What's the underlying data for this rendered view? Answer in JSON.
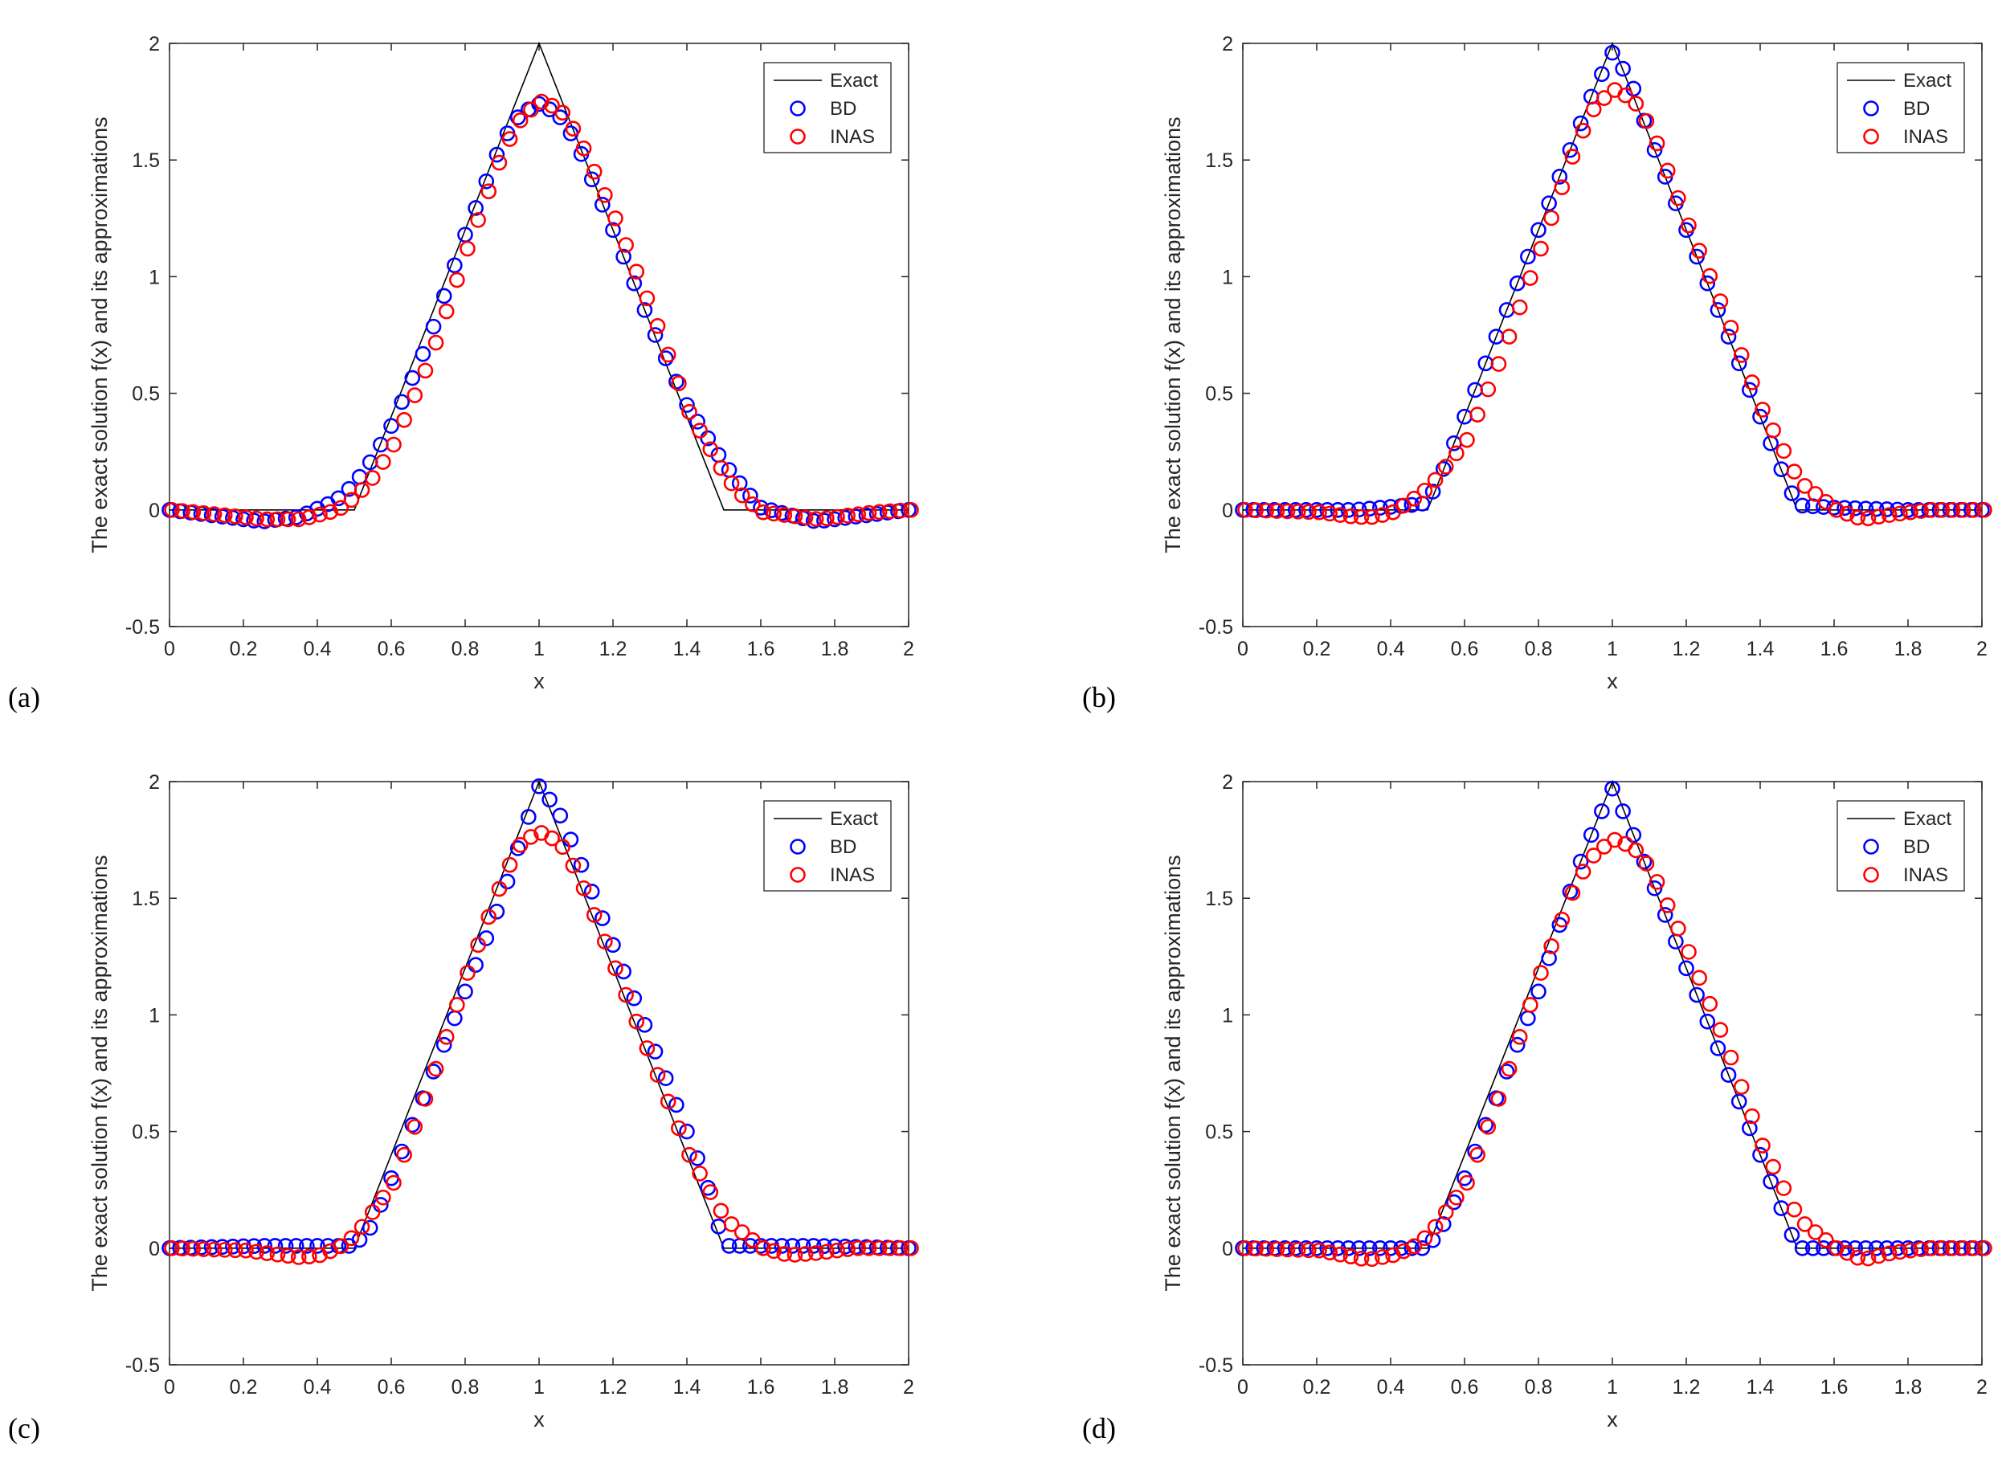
{
  "figure": {
    "panels": [
      "(a)",
      "(b)",
      "(c)",
      "(d)"
    ]
  },
  "colors": {
    "exact": "#000000",
    "bd": "#0000ff",
    "inas": "#ff0000",
    "axes": "#262626",
    "legend_border": "#262626"
  },
  "chart_data": [
    {
      "type": "line+scatter",
      "panel_label": "(a)",
      "xlabel": "x",
      "ylabel": "The exact solution f(x) and its approximations",
      "xlim": [
        0,
        2
      ],
      "ylim": [
        -0.5,
        2
      ],
      "xticks": [
        "0",
        "0.2",
        "0.4",
        "0.6",
        "0.8",
        "1",
        "1.2",
        "1.4",
        "1.6",
        "1.8",
        "2"
      ],
      "yticks": [
        "-0.5",
        "0",
        "0.5",
        "1",
        "1.5",
        "2"
      ],
      "grid": false,
      "legend_position": "top-right",
      "legend": [
        "Exact",
        "BD",
        "INAS"
      ],
      "series": [
        {
          "name": "Exact",
          "style": "line",
          "x": [
            0,
            0.5,
            1,
            1.5,
            2
          ],
          "y": [
            0,
            0,
            2,
            0,
            0
          ]
        },
        {
          "name": "BD",
          "style": "circle",
          "x": [
            0,
            0.25,
            0.35,
            0.45,
            0.5,
            0.55,
            0.6,
            0.7,
            0.8,
            0.9,
            0.95,
            1,
            1.05,
            1.1,
            1.2,
            1.3,
            1.4,
            1.5,
            1.55,
            1.6,
            1.75,
            1.9,
            2
          ],
          "y": [
            0,
            -0.05,
            -0.03,
            0.04,
            0.11,
            0.22,
            0.36,
            0.72,
            1.18,
            1.58,
            1.7,
            1.74,
            1.7,
            1.58,
            1.2,
            0.8,
            0.45,
            0.2,
            0.1,
            0.01,
            -0.05,
            -0.02,
            0
          ]
        },
        {
          "name": "INAS",
          "style": "circle",
          "x": [
            0,
            0.25,
            0.35,
            0.45,
            0.5,
            0.55,
            0.6,
            0.7,
            0.8,
            0.9,
            0.95,
            1,
            1.05,
            1.1,
            1.2,
            1.3,
            1.4,
            1.5,
            1.55,
            1.6,
            1.75,
            1.9,
            2
          ],
          "y": [
            0,
            -0.04,
            -0.04,
            0,
            0.06,
            0.15,
            0.28,
            0.65,
            1.12,
            1.55,
            1.69,
            1.75,
            1.72,
            1.6,
            1.25,
            0.85,
            0.42,
            0.14,
            0.05,
            -0.01,
            -0.04,
            -0.01,
            0
          ]
        }
      ]
    },
    {
      "type": "line+scatter",
      "panel_label": "(b)",
      "xlabel": "x",
      "ylabel": "The exact solution f(x) and its approximations",
      "xlim": [
        0,
        2
      ],
      "ylim": [
        -0.5,
        2
      ],
      "xticks": [
        "0",
        "0.2",
        "0.4",
        "0.6",
        "0.8",
        "1",
        "1.2",
        "1.4",
        "1.6",
        "1.8",
        "2"
      ],
      "yticks": [
        "-0.5",
        "0",
        "0.5",
        "1",
        "1.5",
        "2"
      ],
      "grid": false,
      "legend_position": "top-right",
      "legend": [
        "Exact",
        "BD",
        "INAS"
      ],
      "series": [
        {
          "name": "Exact",
          "style": "line",
          "x": [
            0,
            0.5,
            1,
            1.5,
            2
          ],
          "y": [
            0,
            0,
            2,
            0,
            0
          ]
        },
        {
          "name": "BD",
          "style": "circle",
          "x": [
            0,
            0.3,
            0.45,
            0.5,
            0.55,
            0.6,
            0.7,
            0.8,
            0.9,
            0.95,
            1,
            1.05,
            1.1,
            1.2,
            1.3,
            1.4,
            1.45,
            1.5,
            1.6,
            1.8
          ],
          "y": [
            0,
            0,
            0.02,
            0.03,
            0.2,
            0.4,
            0.8,
            1.2,
            1.6,
            1.8,
            1.96,
            1.84,
            1.6,
            1.2,
            0.8,
            0.4,
            0.2,
            0.02,
            0.01,
            0
          ]
        },
        {
          "name": "INAS",
          "style": "circle",
          "x": [
            0,
            0.2,
            0.3,
            0.35,
            0.4,
            0.45,
            0.5,
            0.6,
            0.7,
            0.8,
            0.9,
            0.95,
            1,
            1.05,
            1.1,
            1.2,
            1.3,
            1.4,
            1.5,
            1.6,
            1.67,
            1.75,
            1.85,
            2
          ],
          "y": [
            0,
            -0.01,
            -0.03,
            -0.03,
            -0.01,
            0.04,
            0.1,
            0.3,
            0.68,
            1.12,
            1.58,
            1.74,
            1.8,
            1.76,
            1.63,
            1.22,
            0.84,
            0.43,
            0.12,
            0,
            -0.04,
            -0.02,
            0,
            0
          ]
        }
      ]
    },
    {
      "type": "line+scatter",
      "panel_label": "(c)",
      "xlabel": "x",
      "ylabel": "The exact solution f(x) and its approximations",
      "xlim": [
        0,
        2
      ],
      "ylim": [
        -0.5,
        2
      ],
      "xticks": [
        "0",
        "0.2",
        "0.4",
        "0.6",
        "0.8",
        "1",
        "1.2",
        "1.4",
        "1.6",
        "1.8",
        "2"
      ],
      "yticks": [
        "-0.5",
        "0",
        "0.5",
        "1",
        "1.5",
        "2"
      ],
      "grid": false,
      "legend_position": "top-right",
      "legend": [
        "Exact",
        "BD",
        "INAS"
      ],
      "series": [
        {
          "name": "Exact",
          "style": "line",
          "x": [
            0,
            0.5,
            1,
            1.5,
            2
          ],
          "y": [
            0,
            0,
            2,
            0,
            0
          ]
        },
        {
          "name": "BD",
          "style": "circle",
          "x": [
            0,
            0.25,
            0.4,
            0.5,
            0.55,
            0.6,
            0.7,
            0.8,
            0.9,
            0.95,
            1,
            1.05,
            1.1,
            1.2,
            1.3,
            1.4,
            1.45,
            1.5,
            1.6,
            1.75,
            2
          ],
          "y": [
            0,
            0.01,
            0.01,
            0.01,
            0.1,
            0.3,
            0.7,
            1.1,
            1.5,
            1.75,
            1.98,
            1.88,
            1.7,
            1.3,
            0.9,
            0.5,
            0.3,
            0.01,
            0.01,
            0.01,
            0
          ]
        },
        {
          "name": "INAS",
          "style": "circle",
          "x": [
            0,
            0.2,
            0.3,
            0.35,
            0.4,
            0.45,
            0.5,
            0.6,
            0.7,
            0.8,
            0.9,
            0.95,
            1,
            1.05,
            1.1,
            1.2,
            1.3,
            1.4,
            1.5,
            1.6,
            1.67,
            1.75,
            1.85,
            2
          ],
          "y": [
            0,
            -0.01,
            -0.03,
            -0.04,
            -0.03,
            0,
            0.06,
            0.28,
            0.7,
            1.18,
            1.6,
            1.75,
            1.78,
            1.74,
            1.6,
            1.2,
            0.8,
            0.4,
            0.12,
            0,
            -0.03,
            -0.02,
            0,
            0
          ]
        }
      ]
    },
    {
      "type": "line+scatter",
      "panel_label": "(d)",
      "xlabel": "x",
      "ylabel": "The exact solution f(x) and its approximations",
      "xlim": [
        0,
        2
      ],
      "ylim": [
        -0.5,
        2
      ],
      "xticks": [
        "0",
        "0.2",
        "0.4",
        "0.6",
        "0.8",
        "1",
        "1.2",
        "1.4",
        "1.6",
        "1.8",
        "2"
      ],
      "yticks": [
        "-0.5",
        "0",
        "0.5",
        "1",
        "1.5",
        "2"
      ],
      "grid": false,
      "legend_position": "top-right",
      "legend": [
        "Exact",
        "BD",
        "INAS"
      ],
      "series": [
        {
          "name": "Exact",
          "style": "line",
          "x": [
            0,
            0.5,
            1,
            1.5,
            2
          ],
          "y": [
            0,
            0,
            2,
            0,
            0
          ]
        },
        {
          "name": "BD",
          "style": "circle",
          "x": [
            0,
            0.3,
            0.45,
            0.5,
            0.55,
            0.6,
            0.7,
            0.8,
            0.9,
            0.95,
            1,
            1.05,
            1.1,
            1.2,
            1.3,
            1.4,
            1.45,
            1.5,
            1.6,
            1.8,
            2
          ],
          "y": [
            0,
            0,
            0,
            0,
            0.12,
            0.3,
            0.7,
            1.1,
            1.6,
            1.8,
            1.97,
            1.8,
            1.6,
            1.2,
            0.8,
            0.4,
            0.2,
            0,
            0,
            0,
            0
          ]
        },
        {
          "name": "INAS",
          "style": "circle",
          "x": [
            0,
            0.2,
            0.3,
            0.33,
            0.4,
            0.45,
            0.5,
            0.6,
            0.7,
            0.8,
            0.9,
            0.95,
            1,
            1.05,
            1.1,
            1.2,
            1.3,
            1.4,
            1.5,
            1.6,
            1.67,
            1.75,
            1.85,
            2
          ],
          "y": [
            0,
            -0.01,
            -0.04,
            -0.05,
            -0.03,
            0,
            0.06,
            0.28,
            0.7,
            1.18,
            1.58,
            1.7,
            1.75,
            1.72,
            1.62,
            1.27,
            0.88,
            0.44,
            0.12,
            0,
            -0.05,
            -0.02,
            0,
            0
          ]
        }
      ]
    }
  ]
}
